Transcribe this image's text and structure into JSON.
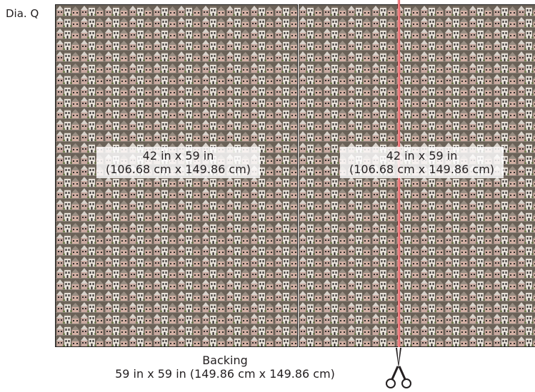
{
  "diagram_label": "Dia. Q",
  "panels": [
    {
      "size_in": "42 in x 59 in",
      "size_cm": "(106.68 cm x 149.86 cm)"
    },
    {
      "size_in": "42 in x 59 in",
      "size_cm": "(106.68 cm x 149.86 cm)"
    }
  ],
  "backing": {
    "title": "Backing",
    "size": "59 in x 59 in (149.86 cm x 149.86 cm)"
  },
  "icons": {
    "cut": "scissors-icon"
  },
  "colors": {
    "cut_line": "#e11b22",
    "outline": "#222222"
  }
}
